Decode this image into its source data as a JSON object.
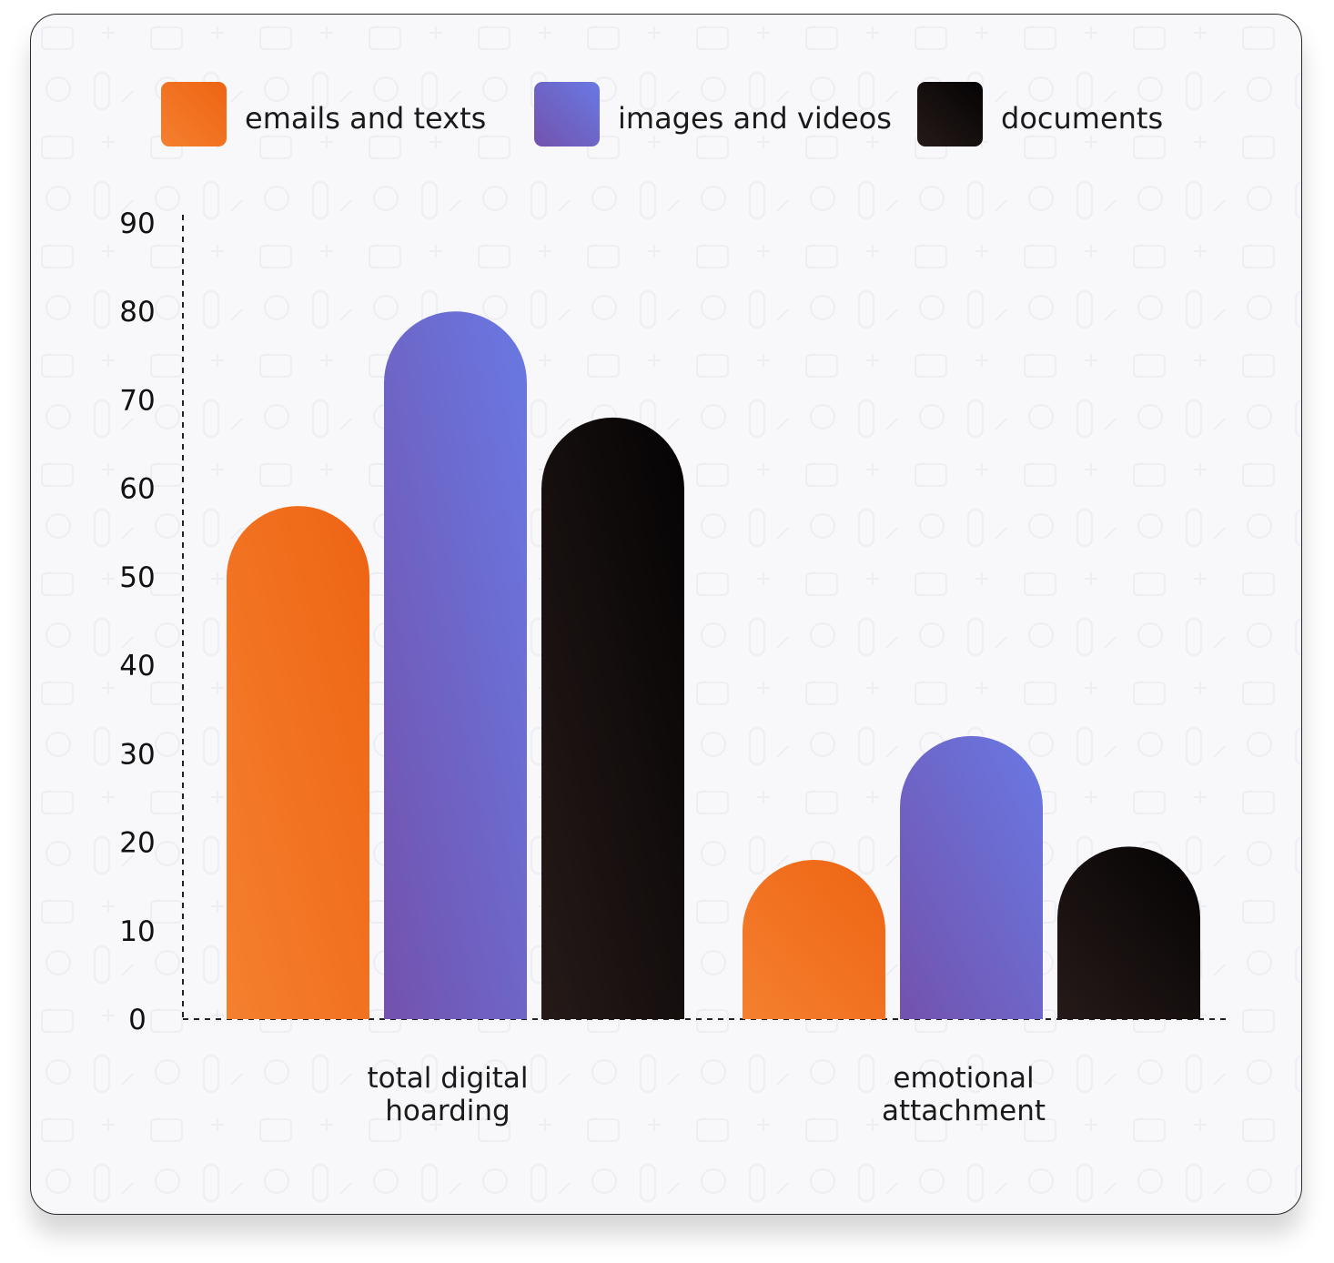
{
  "chart_data": {
    "type": "bar",
    "categories": [
      [
        "total digital",
        "hoarding"
      ],
      [
        "emotional",
        "attachment"
      ]
    ],
    "series": [
      {
        "name": "emails and texts",
        "values": [
          58,
          18
        ]
      },
      {
        "name": "images and videos",
        "values": [
          80,
          32
        ]
      },
      {
        "name": "documents",
        "values": [
          68,
          19.5
        ]
      }
    ],
    "yticks": [
      0,
      10,
      20,
      30,
      40,
      50,
      60,
      70,
      80,
      90
    ],
    "ylim": [
      0,
      90
    ],
    "grid": false,
    "legend_position": "top",
    "colors": {
      "emails and texts": [
        "#ee6413",
        "#f4802f"
      ],
      "images and videos": [
        "#6979e3",
        "#7352ad"
      ],
      "documents": [
        "#050304",
        "#251a18"
      ]
    }
  }
}
